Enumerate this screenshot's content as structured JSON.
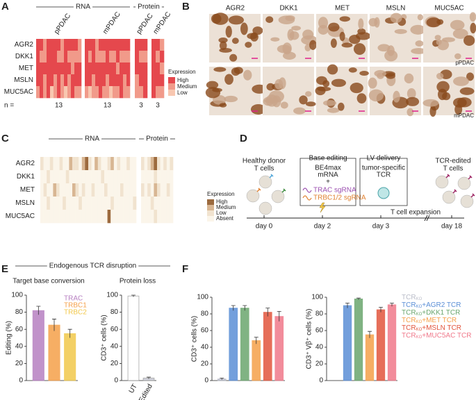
{
  "panels": {
    "A": {
      "letter": "A",
      "group_labels": [
        "RNA",
        "Protein"
      ],
      "column_labels": [
        "pPDAC",
        "mPDAC",
        "pPDAC",
        "mPDAC"
      ],
      "rows": [
        "AGR2",
        "DKK1",
        "MET",
        "MSLN",
        "MUC5AC"
      ],
      "n_label": "n =",
      "counts": [
        13,
        13,
        3,
        3
      ],
      "legend_title": "Expression",
      "legend": [
        {
          "label": "High",
          "color": "#e5484d"
        },
        {
          "label": "Medium",
          "color": "#f19a8a"
        },
        {
          "label": "Low",
          "color": "#f8c7b0"
        }
      ],
      "levels": [
        [
          [
            3,
            3,
            2,
            3,
            3,
            3,
            3,
            2,
            3,
            3,
            3,
            3,
            2
          ],
          [
            3,
            2,
            2,
            3,
            3,
            3,
            2,
            2,
            3,
            2,
            2,
            2,
            2
          ],
          [
            3,
            3,
            3,
            3,
            3,
            3,
            3,
            3,
            3,
            3,
            2,
            3,
            3
          ],
          [
            3,
            3,
            2,
            3,
            3,
            2,
            3,
            2,
            3,
            2,
            3,
            3,
            3
          ],
          [
            2,
            3,
            2,
            3,
            1,
            2,
            3,
            2,
            1,
            2,
            3,
            2,
            2
          ]
        ],
        [
          [
            3,
            3,
            3,
            2,
            3,
            3,
            3,
            3,
            3,
            3,
            3,
            3,
            3
          ],
          [
            3,
            2,
            3,
            2,
            2,
            2,
            3,
            2,
            2,
            3,
            2,
            2,
            2
          ],
          [
            3,
            3,
            3,
            3,
            3,
            3,
            3,
            3,
            3,
            2,
            3,
            3,
            3
          ],
          [
            3,
            3,
            2,
            3,
            3,
            3,
            2,
            3,
            3,
            3,
            3,
            2,
            3
          ],
          [
            2,
            1,
            2,
            2,
            3,
            2,
            2,
            1,
            2,
            2,
            3,
            2,
            2
          ]
        ],
        [
          [
            3,
            3,
            3
          ],
          [
            3,
            2,
            2
          ],
          [
            3,
            3,
            3
          ],
          [
            2,
            3,
            3
          ],
          [
            2,
            2,
            3
          ]
        ],
        [
          [
            3,
            3,
            2
          ],
          [
            3,
            2,
            3
          ],
          [
            3,
            3,
            2
          ],
          [
            3,
            3,
            3
          ],
          [
            3,
            2,
            2
          ]
        ]
      ]
    },
    "B": {
      "letter": "B",
      "markers": [
        "AGR2",
        "DKK1",
        "MET",
        "MSLN",
        "MUC5AC"
      ],
      "row_labels": [
        "pPDAC",
        "mPDAC"
      ]
    },
    "C": {
      "letter": "C",
      "group_labels": [
        "RNA",
        "Protein"
      ],
      "rows": [
        "AGR2",
        "DKK1",
        "MET",
        "MSLN",
        "MUC5AC"
      ],
      "legend_title": "Expression",
      "legend": [
        {
          "label": "High",
          "color": "#9c6a3e"
        },
        {
          "label": "Medium",
          "color": "#d8b693"
        },
        {
          "label": "Low",
          "color": "#f1e3cf"
        },
        {
          "label": "Absent",
          "color": "#fbf5ea"
        }
      ],
      "levels": [
        [
          [
            1,
            0,
            0,
            1,
            0,
            0,
            1,
            0,
            0,
            2,
            1,
            1,
            0,
            2,
            3,
            1,
            0,
            2,
            1,
            0,
            0,
            1,
            2,
            0,
            1,
            0,
            0,
            1,
            0,
            0
          ],
          [
            0,
            0,
            1,
            0,
            0,
            0,
            0,
            0,
            1,
            0,
            0,
            0,
            0,
            0,
            0,
            0,
            0,
            0,
            0,
            1,
            0,
            0,
            0,
            0,
            0,
            0,
            0,
            0,
            0,
            0
          ],
          [
            0,
            1,
            0,
            0,
            2,
            1,
            0,
            0,
            0,
            0,
            2,
            1,
            0,
            1,
            0,
            0,
            1,
            0,
            0,
            0,
            1,
            0,
            0,
            0,
            0,
            1,
            0,
            0,
            0,
            0
          ],
          [
            0,
            0,
            1,
            0,
            0,
            0,
            0,
            1,
            0,
            0,
            0,
            0,
            1,
            0,
            0,
            0,
            0,
            0,
            0,
            0,
            0,
            0,
            1,
            0,
            0,
            0,
            0,
            0,
            0,
            1
          ],
          [
            0,
            0,
            0,
            0,
            0,
            0,
            0,
            0,
            0,
            0,
            0,
            0,
            0,
            0,
            0,
            0,
            0,
            0,
            0,
            0,
            0,
            3,
            0,
            0,
            0,
            0,
            0,
            0,
            0,
            0
          ]
        ],
        [
          [
            1,
            0,
            1,
            2,
            3,
            1,
            0,
            1,
            0,
            1
          ],
          [
            0,
            0,
            0,
            0,
            1,
            0,
            0,
            0,
            0,
            0
          ],
          [
            1,
            0,
            1,
            0,
            2,
            1,
            0,
            0,
            1,
            0
          ],
          [
            0,
            0,
            0,
            1,
            0,
            0,
            0,
            0,
            0,
            0
          ],
          [
            0,
            0,
            0,
            0,
            1,
            0,
            0,
            0,
            0,
            0
          ]
        ]
      ]
    },
    "D": {
      "letter": "D",
      "donor": [
        "Healthy donor",
        "T cells"
      ],
      "box1": {
        "title": "Base editing",
        "lines": [
          "BE4max",
          "mRNA",
          "+"
        ],
        "sgrna": [
          "TRAC sgRNA",
          "TRBC1/2 sgRNA"
        ]
      },
      "box2": {
        "title": "LV delivery",
        "lines": [
          "tumor-specific",
          "TCR"
        ]
      },
      "result": [
        "TCR-edited",
        "T cells"
      ],
      "expansion": "T cell expansion",
      "days": [
        "day 0",
        "day 2",
        "day 3",
        "day 18"
      ]
    },
    "E": {
      "letter": "E",
      "title": "Endogenous TCR disruption",
      "charts": [
        {
          "title": "Target base conversion",
          "ylabel": "Editing (%)",
          "ylim": [
            0,
            100
          ],
          "yticks": [
            0,
            20,
            40,
            60,
            80,
            100
          ],
          "names": [
            "TRAC",
            "TRBC1",
            "TRBC2"
          ],
          "colors": [
            "#b77fc1",
            "#f5a04a",
            "#f2c84b"
          ],
          "values": [
            82,
            65,
            55
          ],
          "errors": [
            5,
            7,
            5
          ]
        },
        {
          "title": "Protein loss",
          "ylabel": "CD3⁺ cells (%)",
          "ylim": [
            0,
            100
          ],
          "yticks": [
            0,
            20,
            40,
            60,
            80,
            100
          ],
          "categories": [
            "UT",
            "Edited"
          ],
          "colors": [
            "#ffffff",
            "#c9cbd6"
          ],
          "values": [
            99,
            3
          ],
          "errors": [
            1,
            1
          ]
        }
      ]
    },
    "F": {
      "letter": "F",
      "legend": [
        {
          "base": "TCR",
          "sub": "KO",
          "suffix": "",
          "color": "#b9bcc8"
        },
        {
          "base": "TCR",
          "sub": "KO",
          "suffix": "+AGR2 TCR",
          "color": "#5b8fd6"
        },
        {
          "base": "TCR",
          "sub": "KO",
          "suffix": "+DKK1 TCR",
          "color": "#6aa66e"
        },
        {
          "base": "TCR",
          "sub": "KO",
          "suffix": "+MET TCR",
          "color": "#f5a04a"
        },
        {
          "base": "TCR",
          "sub": "KO",
          "suffix": "+MSLN TCR",
          "color": "#e2553d"
        },
        {
          "base": "TCR",
          "sub": "KO",
          "suffix": "+MUC5AC TCR",
          "color": "#f0788a"
        }
      ],
      "charts": [
        {
          "ylabel": "CD3⁺ cells (%)",
          "ylim": [
            0,
            100
          ],
          "yticks": [
            0,
            20,
            40,
            60,
            80,
            100
          ],
          "values": [
            2,
            87,
            87,
            48,
            82,
            77
          ],
          "errors": [
            1,
            3,
            3,
            4,
            5,
            6
          ]
        },
        {
          "ylabel": "CD3⁺ Vβ⁺ cells (%)",
          "ylim": [
            0,
            100
          ],
          "yticks": [
            0,
            20,
            40,
            60,
            80,
            100
          ],
          "values": [
            null,
            90,
            98,
            55,
            85,
            91
          ],
          "errors": [
            null,
            3,
            1,
            4,
            3,
            2
          ]
        }
      ]
    }
  }
}
